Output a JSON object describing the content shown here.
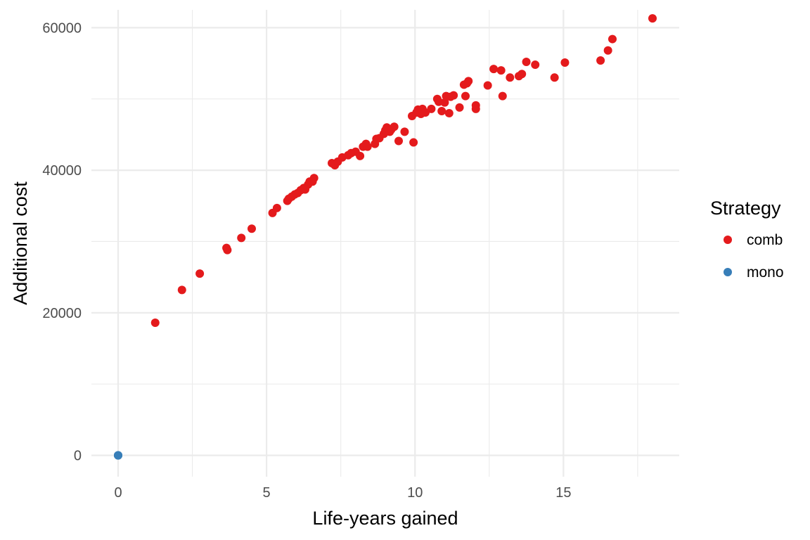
{
  "chart_data": {
    "type": "scatter",
    "xlabel": "Life-years gained",
    "ylabel": "Additional cost",
    "xlim": [
      -0.9,
      18.9
    ],
    "ylim": [
      -3000,
      62500
    ],
    "x_ticks": [
      0,
      5,
      10,
      15
    ],
    "x_tick_labels": [
      "0",
      "5",
      "10",
      "15"
    ],
    "x_minor_ticks": [
      2.5,
      7.5,
      12.5,
      17.5
    ],
    "y_ticks": [
      0,
      20000,
      40000,
      60000
    ],
    "y_tick_labels": [
      "0",
      "20000",
      "40000",
      "60000"
    ],
    "y_minor_ticks": [
      10000,
      30000,
      50000
    ],
    "grid": true,
    "legend": {
      "title": "Strategy",
      "placement": "right"
    },
    "series": [
      {
        "name": "comb",
        "color": "#E41A1C",
        "points": [
          [
            1.25,
            18600
          ],
          [
            2.15,
            23200
          ],
          [
            2.75,
            25500
          ],
          [
            3.65,
            29100
          ],
          [
            3.68,
            28800
          ],
          [
            4.15,
            30500
          ],
          [
            4.5,
            31800
          ],
          [
            5.2,
            34000
          ],
          [
            5.35,
            34700
          ],
          [
            5.7,
            35700
          ],
          [
            5.75,
            36000
          ],
          [
            5.85,
            36300
          ],
          [
            5.95,
            36600
          ],
          [
            6.05,
            36800
          ],
          [
            6.15,
            37200
          ],
          [
            6.25,
            37500
          ],
          [
            6.3,
            37300
          ],
          [
            6.4,
            38000
          ],
          [
            6.45,
            38400
          ],
          [
            6.55,
            38400
          ],
          [
            6.6,
            38900
          ],
          [
            7.2,
            41000
          ],
          [
            7.3,
            40700
          ],
          [
            7.4,
            41200
          ],
          [
            7.55,
            41800
          ],
          [
            7.75,
            42100
          ],
          [
            7.85,
            42400
          ],
          [
            8.0,
            42600
          ],
          [
            8.15,
            42000
          ],
          [
            8.25,
            43300
          ],
          [
            8.35,
            43700
          ],
          [
            8.4,
            43300
          ],
          [
            8.65,
            43700
          ],
          [
            8.7,
            44400
          ],
          [
            8.8,
            44500
          ],
          [
            8.95,
            45100
          ],
          [
            9.0,
            45600
          ],
          [
            9.05,
            46000
          ],
          [
            9.15,
            45400
          ],
          [
            9.2,
            45700
          ],
          [
            9.3,
            46100
          ],
          [
            9.45,
            44100
          ],
          [
            9.65,
            45400
          ],
          [
            9.9,
            47600
          ],
          [
            9.95,
            43900
          ],
          [
            10.05,
            48100
          ],
          [
            10.1,
            48500
          ],
          [
            10.2,
            47900
          ],
          [
            10.25,
            48600
          ],
          [
            10.35,
            48100
          ],
          [
            10.55,
            48600
          ],
          [
            10.75,
            50000
          ],
          [
            10.8,
            49600
          ],
          [
            10.9,
            48300
          ],
          [
            11.0,
            49500
          ],
          [
            11.05,
            50400
          ],
          [
            11.15,
            48000
          ],
          [
            11.2,
            50300
          ],
          [
            11.3,
            50500
          ],
          [
            11.5,
            48800
          ],
          [
            11.65,
            52000
          ],
          [
            11.7,
            50400
          ],
          [
            11.75,
            52200
          ],
          [
            11.8,
            52500
          ],
          [
            12.05,
            49100
          ],
          [
            12.05,
            48600
          ],
          [
            12.45,
            51900
          ],
          [
            12.65,
            54200
          ],
          [
            12.9,
            54000
          ],
          [
            12.95,
            50400
          ],
          [
            13.2,
            53000
          ],
          [
            13.5,
            53200
          ],
          [
            13.6,
            53500
          ],
          [
            13.75,
            55200
          ],
          [
            14.05,
            54800
          ],
          [
            14.7,
            53000
          ],
          [
            15.05,
            55100
          ],
          [
            16.25,
            55400
          ],
          [
            16.5,
            56800
          ],
          [
            16.65,
            58400
          ],
          [
            18.0,
            61300
          ]
        ]
      },
      {
        "name": "mono",
        "color": "#377EB8",
        "points": [
          [
            0,
            0
          ],
          [
            0,
            0
          ],
          [
            0,
            0
          ]
        ]
      }
    ]
  }
}
